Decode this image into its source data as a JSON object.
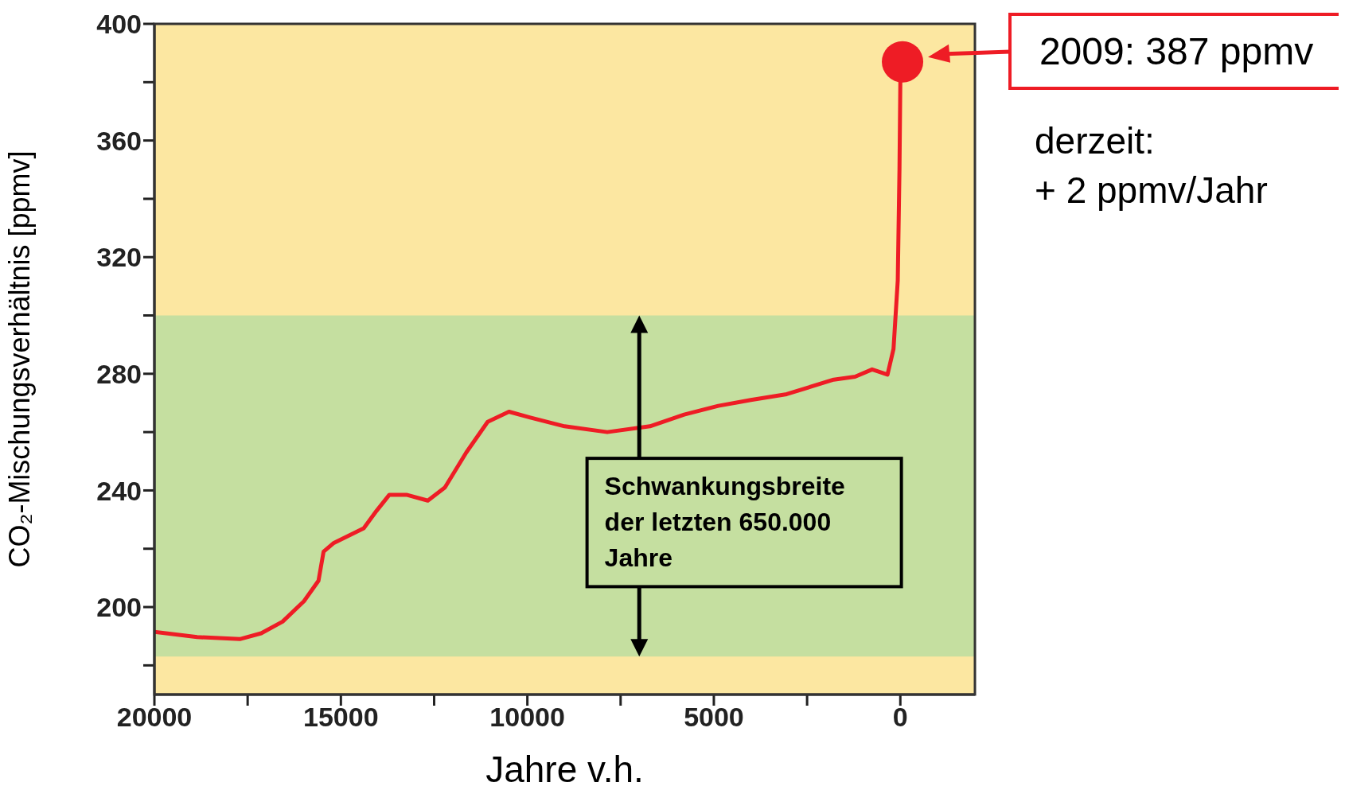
{
  "chart_data": {
    "type": "line",
    "xlabel": "Jahre v.h.",
    "ylabel": "CO₂-Mischungsverhältnis [ppmv]",
    "xlim": [
      20000,
      -2000
    ],
    "xticks": [
      20000,
      {
        "value": 17500,
        "label": null
      },
      15000,
      {
        "value": 12500,
        "label": null
      },
      10000,
      {
        "value": 7500,
        "label": null
      },
      5000,
      {
        "value": 2500,
        "label": null
      },
      0
    ],
    "ylim": [
      170,
      400
    ],
    "yticks": [
      {
        "value": 180,
        "label": null
      },
      200,
      {
        "value": 220,
        "label": null
      },
      240,
      {
        "value": 260,
        "label": null
      },
      280,
      {
        "value": 300,
        "label": null
      },
      320,
      {
        "value": 340,
        "label": null
      },
      360,
      {
        "value": 380,
        "label": null
      },
      400
    ],
    "series": [
      {
        "color": "#ee1c25",
        "x": [
          20000,
          18855,
          17710,
          17136,
          16564,
          15991,
          15601,
          15464,
          15189,
          14387,
          14044,
          13700,
          13242,
          12669,
          12211,
          11638,
          11065,
          10493,
          9920,
          9003,
          7858,
          6713,
          5796,
          4880,
          4009,
          3047,
          1787,
          1214,
          756,
          344,
          183,
          69,
          23,
          0
        ],
        "values": [
          191.5,
          189.7,
          189,
          191,
          195,
          202,
          209,
          219,
          222,
          227,
          233,
          238.5,
          238.5,
          236.5,
          241,
          253,
          263.5,
          267,
          265,
          262,
          260,
          262,
          266,
          269,
          271,
          273,
          278,
          279,
          281.5,
          279.7,
          288.5,
          312,
          350,
          380
        ]
      },
      {
        "type": "scatter",
        "color": "#ee1c25",
        "marker": "circle",
        "x": [
          -59
        ],
        "values": [
          387
        ]
      }
    ],
    "bands": [
      {
        "axis": "y",
        "from": 183,
        "to": 300,
        "color": "#c5dfa0",
        "label": "Schwankungsbreite der letzten 650.000 Jahre"
      }
    ],
    "annotations": [
      "2009: 387 ppmv",
      "derzeit:\n+ 2 ppmv/Jahr"
    ]
  }
}
